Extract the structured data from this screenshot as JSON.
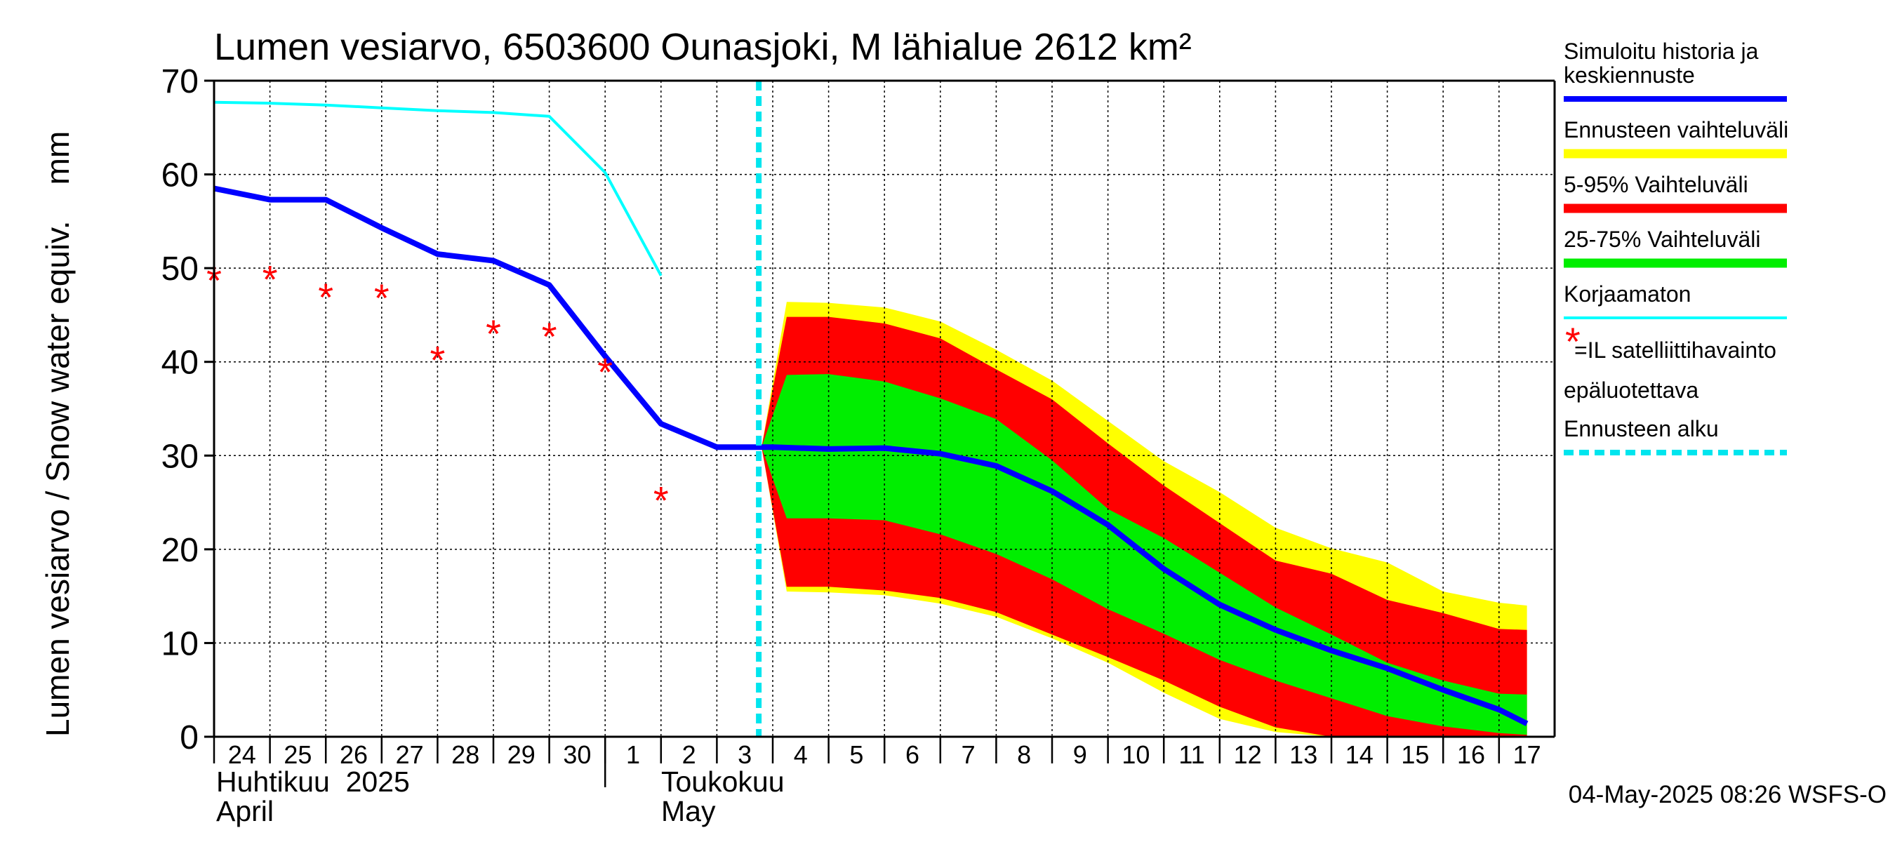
{
  "chart_data": {
    "type": "area",
    "title": "Lumen vesiarvo, 6503600 Ounasjoki, M lähialue 2612 km²",
    "ylabel": "Lumen vesiarvo / Snow water equiv.    mm",
    "ylim": [
      0,
      70
    ],
    "yticks": [
      0,
      10,
      20,
      30,
      40,
      50,
      60,
      70
    ],
    "x_days": [
      "24",
      "25",
      "26",
      "27",
      "28",
      "29",
      "30",
      "1",
      "2",
      "3",
      "4",
      "5",
      "6",
      "7",
      "8",
      "9",
      "10",
      "11",
      "12",
      "13",
      "14",
      "15",
      "16",
      "17"
    ],
    "month_labels": [
      {
        "line1": "Huhtikuu  2025",
        "line2": "April",
        "at_day_index": 0
      },
      {
        "line1": "Toukokuu",
        "line2": "May",
        "at_day_index": 8
      }
    ],
    "forecast_start_index": 9.75,
    "series": [
      {
        "name": "Simuloitu historia ja keskiennuste",
        "color": "#0000ff",
        "x": [
          0,
          1,
          2,
          3,
          4,
          5,
          6,
          7,
          8,
          9,
          10,
          11,
          12,
          13,
          14,
          15,
          16,
          17,
          18,
          19,
          20,
          21,
          22,
          23,
          23.5
        ],
        "values": [
          58.5,
          57.3,
          57.3,
          54.3,
          51.5,
          50.8,
          48.2,
          40.6,
          33.4,
          30.9,
          30.9,
          30.7,
          30.8,
          30.2,
          28.9,
          26.2,
          22.6,
          17.9,
          14.1,
          11.4,
          9.2,
          7.3,
          5.0,
          2.9,
          1.4
        ]
      },
      {
        "name": "Korjaamaton",
        "color": "#00ffff",
        "x": [
          0,
          1,
          2,
          3,
          4,
          5,
          6,
          7,
          8
        ],
        "values": [
          67.7,
          67.6,
          67.4,
          67.1,
          66.8,
          66.6,
          66.2,
          60.2,
          49.2
        ]
      }
    ],
    "bands": [
      {
        "name": "Ennusteen vaihteluväli",
        "color": "#ffff00",
        "x": [
          9.8,
          10.25,
          11,
          12,
          13,
          14,
          15,
          16,
          17,
          18,
          19,
          20,
          21,
          22,
          23,
          23.5
        ],
        "upper": [
          30.9,
          46.4,
          46.3,
          45.8,
          44.3,
          41.3,
          38.0,
          33.7,
          29.4,
          26.1,
          22.3,
          20.1,
          18.6,
          15.5,
          14.3,
          14.0
        ],
        "lower": [
          30.9,
          15.5,
          15.4,
          15.1,
          14.2,
          12.8,
          10.5,
          7.9,
          4.7,
          1.9,
          0.5,
          0,
          0,
          0,
          0,
          0
        ]
      },
      {
        "name": "5-95% Vaihteluväli",
        "color": "#ff0000",
        "x": [
          9.8,
          10.25,
          11,
          12,
          13,
          14,
          15,
          16,
          17,
          18,
          19,
          20,
          21,
          22,
          23,
          23.5
        ],
        "upper": [
          30.9,
          44.8,
          44.8,
          44.1,
          42.5,
          39.2,
          36.0,
          31.3,
          26.8,
          22.8,
          18.8,
          17.4,
          14.6,
          13.2,
          11.5,
          11.4
        ],
        "lower": [
          30.9,
          16.0,
          16.0,
          15.6,
          14.8,
          13.3,
          10.9,
          8.5,
          6.0,
          3.2,
          1.0,
          0,
          0,
          0,
          0,
          0
        ]
      },
      {
        "name": "25-75% Vaihteluväli",
        "color": "#00ee00",
        "x": [
          9.8,
          10.25,
          11,
          12,
          13,
          14,
          15,
          16,
          17,
          18,
          19,
          20,
          21,
          22,
          23,
          23.5
        ],
        "upper": [
          30.9,
          38.6,
          38.7,
          37.9,
          36.1,
          33.9,
          29.5,
          24.3,
          21.2,
          17.5,
          13.8,
          10.9,
          7.9,
          6.0,
          4.6,
          4.5
        ],
        "lower": [
          30.9,
          23.3,
          23.3,
          23.1,
          21.6,
          19.5,
          16.8,
          13.6,
          11.0,
          8.2,
          6.0,
          4.1,
          2.2,
          1.1,
          0.4,
          0.2
        ]
      }
    ],
    "observations": {
      "name": "=IL satelliittihavainto epäluotettava",
      "color": "#ff0000",
      "x": [
        0,
        1,
        2,
        3,
        4,
        5,
        6,
        7,
        8
      ],
      "values": [
        48.9,
        49.0,
        47.1,
        47.0,
        40.4,
        43.2,
        42.9,
        39.1,
        25.4
      ]
    },
    "legend": {
      "placement": "right",
      "items": [
        {
          "key": "history",
          "label": "Simuloitu historia ja keskiennuste",
          "color": "#0000ff"
        },
        {
          "key": "range",
          "label": "Ennusteen vaihteluväli",
          "color": "#ffff00"
        },
        {
          "key": "p595",
          "label": "5-95% Vaihteluväli",
          "color": "#ff0000"
        },
        {
          "key": "p2575",
          "label": "25-75% Vaihteluväli",
          "color": "#00ee00"
        },
        {
          "key": "uncorrected",
          "label": "Korjaamaton",
          "color": "#00ffff"
        },
        {
          "key": "satellite",
          "label": "=IL satelliittihavainto epäluotettava",
          "color": "#ff0000"
        },
        {
          "key": "forecast",
          "label": "Ennusteen alku",
          "color": "#00e5ee"
        }
      ]
    },
    "footer": "04-May-2025 08:26 WSFS-O"
  }
}
